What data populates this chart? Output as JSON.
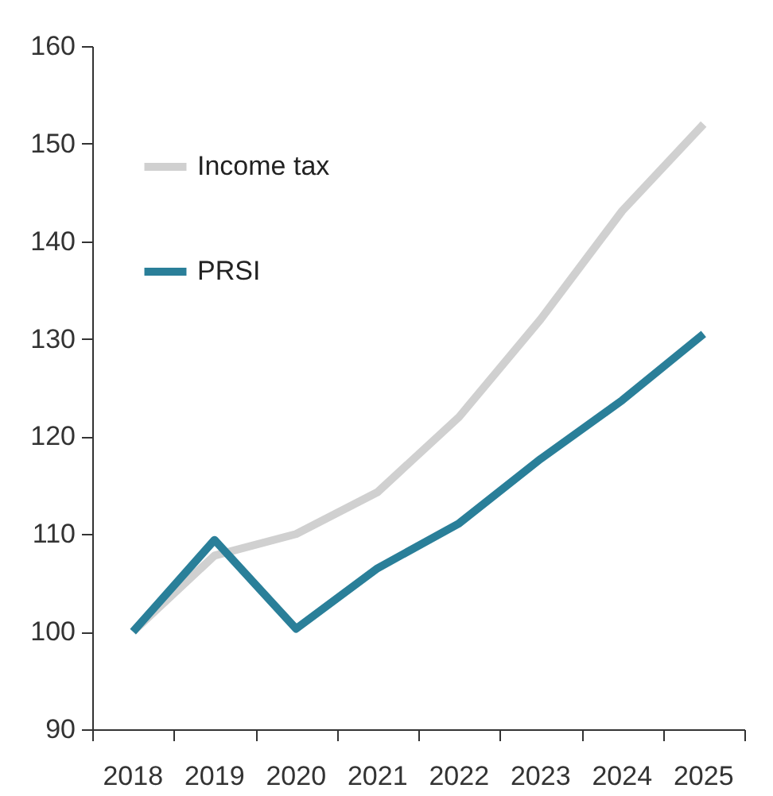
{
  "chart_data": {
    "type": "line",
    "categories": [
      "2018",
      "2019",
      "2020",
      "2021",
      "2022",
      "2023",
      "2024",
      "2025"
    ],
    "series": [
      {
        "name": "Income tax",
        "color": "#d0d0d0",
        "values": [
          100,
          107.8,
          110.0,
          114.3,
          122.0,
          132.0,
          143.1,
          152.0
        ]
      },
      {
        "name": "PRSI",
        "color": "#2a7f99",
        "values": [
          100,
          109.4,
          100.3,
          106.5,
          111.1,
          117.7,
          123.7,
          130.5
        ]
      }
    ],
    "ylim": [
      90,
      160
    ],
    "yticks": [
      90,
      100,
      110,
      120,
      130,
      140,
      150,
      160
    ],
    "grid": false,
    "legend": "top left",
    "marker": "none",
    "line_style": "solid"
  }
}
